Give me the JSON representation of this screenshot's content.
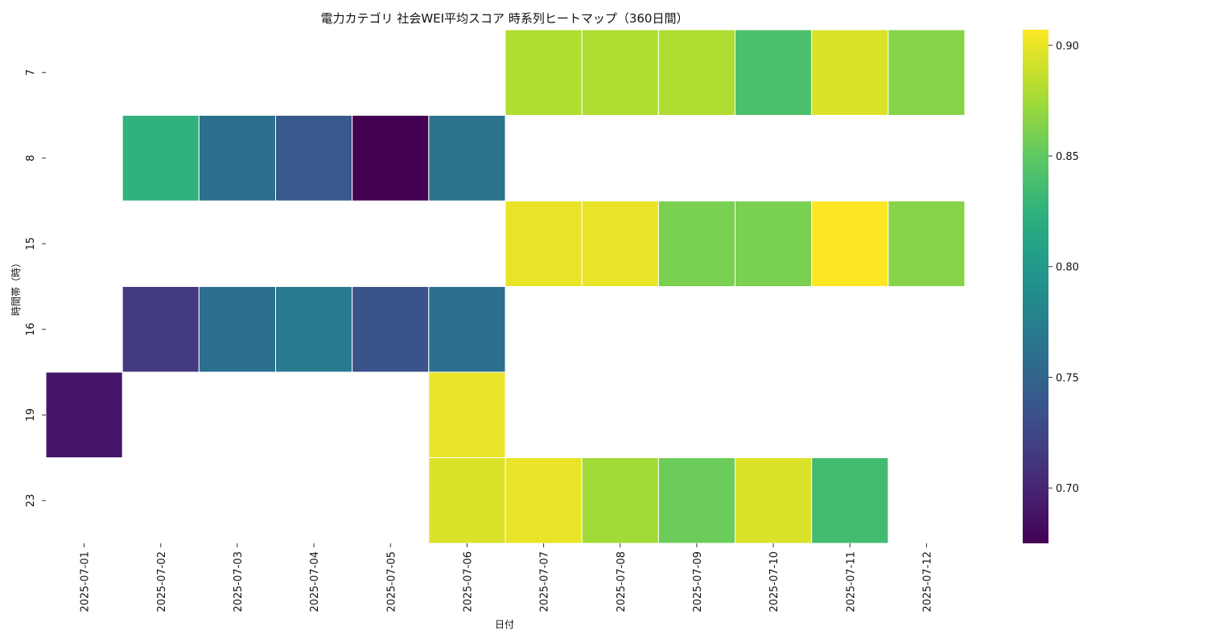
{
  "chart_data": {
    "type": "heatmap",
    "title": "電力カテゴリ 社会WEI平均スコア 時系列ヒートマップ（360日間）",
    "xlabel": "日付",
    "ylabel": "時間帯（時）",
    "x": [
      "2025-07-01",
      "2025-07-02",
      "2025-07-03",
      "2025-07-04",
      "2025-07-05",
      "2025-07-06",
      "2025-07-07",
      "2025-07-08",
      "2025-07-09",
      "2025-07-10",
      "2025-07-11",
      "2025-07-12"
    ],
    "y": [
      "7",
      "8",
      "15",
      "16",
      "19",
      "23"
    ],
    "values": [
      [
        null,
        null,
        null,
        null,
        null,
        null,
        0.88,
        0.88,
        0.88,
        0.84,
        0.895,
        0.865
      ],
      [
        null,
        0.825,
        0.76,
        0.74,
        0.675,
        0.765,
        null,
        null,
        null,
        null,
        null,
        null
      ],
      [
        null,
        null,
        null,
        null,
        null,
        null,
        0.9,
        0.9,
        0.86,
        0.86,
        0.907,
        0.865
      ],
      [
        null,
        0.715,
        0.76,
        0.77,
        0.735,
        0.76,
        null,
        null,
        null,
        null,
        null,
        null
      ],
      [
        0.69,
        null,
        null,
        null,
        null,
        0.9,
        null,
        null,
        null,
        null,
        null,
        null
      ],
      [
        null,
        null,
        null,
        null,
        null,
        0.895,
        0.9,
        0.875,
        0.855,
        0.895,
        0.835,
        null
      ]
    ],
    "colormap": "viridis",
    "colorbar": {
      "range": [
        0.675,
        0.907
      ],
      "ticks": [
        "0.70",
        "0.75",
        "0.80",
        "0.85",
        "0.90"
      ]
    },
    "grid": false
  }
}
